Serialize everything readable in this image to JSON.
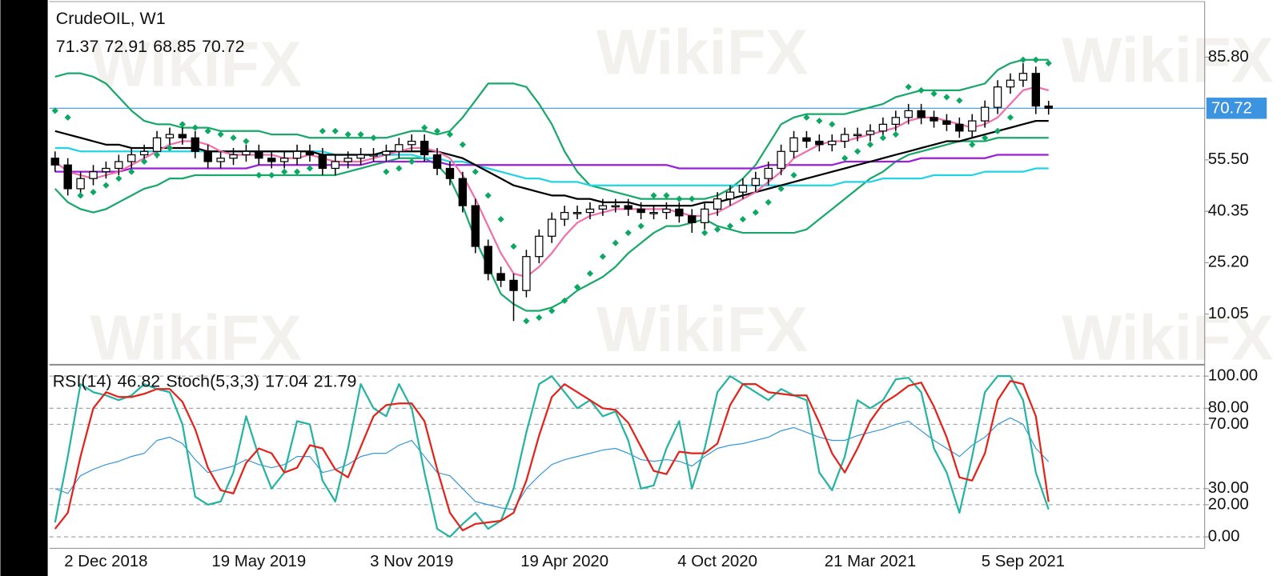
{
  "watermark": "WikiFX",
  "chart_data": [
    {
      "type": "candlestick",
      "title": "CrudeOIL, W1",
      "categories": [
        null,
        null,
        null,
        null,
        "2 Dec 2018",
        null,
        null,
        null,
        null,
        null,
        null,
        null,
        null,
        null,
        null,
        null,
        "19 May 2019",
        null,
        null,
        null,
        null,
        null,
        null,
        null,
        null,
        null,
        null,
        null,
        "3 Nov 2019",
        null,
        null,
        null,
        null,
        null,
        null,
        null,
        null,
        null,
        null,
        null,
        "19 Apr 2020",
        null,
        null,
        null,
        null,
        null,
        null,
        null,
        null,
        null,
        null,
        null,
        "4 Oct 2020",
        null,
        null,
        null,
        null,
        null,
        null,
        null,
        null,
        null,
        null,
        null,
        "21 Mar 2021",
        null,
        null,
        null,
        null,
        null,
        null,
        null,
        null,
        null,
        null,
        null,
        "5 Sep 2021",
        null,
        null
      ],
      "open": [
        56,
        54,
        47,
        50,
        52,
        53,
        55,
        57,
        58,
        62,
        63,
        62,
        58,
        55,
        56,
        57,
        58,
        56,
        55,
        56,
        58,
        57,
        53,
        55,
        56,
        57,
        57,
        58,
        60,
        61,
        57,
        53,
        50,
        42,
        30,
        22,
        20,
        17,
        27,
        33,
        38,
        40,
        40,
        41,
        42,
        42,
        41,
        40,
        40,
        41,
        39,
        37,
        41,
        44,
        46,
        48,
        50,
        53,
        58,
        62,
        61,
        60,
        61,
        63,
        63,
        64,
        66,
        68,
        70,
        68,
        67,
        66,
        64,
        67,
        71,
        77,
        79,
        81,
        71.37
      ],
      "high": [
        58,
        56,
        52,
        54,
        55,
        57,
        59,
        60,
        64,
        65,
        65,
        64,
        60,
        58,
        59,
        60,
        60,
        58,
        58,
        60,
        60,
        59,
        57,
        58,
        59,
        59,
        60,
        62,
        63,
        63,
        59,
        55,
        52,
        44,
        32,
        24,
        22,
        29,
        35,
        40,
        42,
        42,
        43,
        44,
        44,
        44,
        43,
        42,
        43,
        43,
        41,
        43,
        46,
        48,
        50,
        52,
        55,
        60,
        64,
        64,
        63,
        63,
        65,
        65,
        66,
        68,
        70,
        72,
        72,
        70,
        69,
        68,
        69,
        73,
        79,
        81,
        84,
        83,
        72.91
      ],
      "low": [
        52,
        45,
        45,
        48,
        50,
        51,
        53,
        55,
        56,
        60,
        60,
        56,
        53,
        53,
        54,
        55,
        54,
        53,
        53,
        54,
        55,
        51,
        51,
        53,
        54,
        55,
        55,
        56,
        58,
        55,
        51,
        48,
        40,
        28,
        20,
        18,
        8,
        15,
        25,
        31,
        36,
        38,
        38,
        39,
        40,
        39,
        38,
        38,
        38,
        37,
        34,
        35,
        39,
        42,
        44,
        46,
        48,
        51,
        56,
        59,
        58,
        58,
        59,
        61,
        61,
        62,
        64,
        66,
        66,
        65,
        64,
        62,
        62,
        65,
        69,
        75,
        77,
        69,
        68.85
      ],
      "close": [
        54,
        47,
        50,
        52,
        53,
        55,
        57,
        58,
        62,
        63,
        62,
        58,
        55,
        56,
        57,
        58,
        56,
        55,
        56,
        58,
        57,
        53,
        55,
        56,
        57,
        57,
        58,
        60,
        61,
        57,
        53,
        50,
        42,
        30,
        22,
        20,
        17,
        27,
        33,
        38,
        40,
        40,
        41,
        42,
        42,
        41,
        40,
        40,
        41,
        39,
        37,
        41,
        44,
        46,
        48,
        50,
        53,
        58,
        62,
        61,
        60,
        61,
        63,
        63,
        64,
        66,
        68,
        70,
        68,
        67,
        66,
        64,
        67,
        71,
        77,
        79,
        81,
        71.37,
        70.72
      ],
      "up_color": "#ffffff",
      "down_color": "#000000",
      "series": [
        {
          "color": "#1aa86a",
          "values": [
            80,
            81,
            81,
            80,
            78,
            74,
            70,
            67,
            66,
            66,
            65,
            65,
            65,
            64,
            64,
            64,
            64,
            63,
            63,
            63,
            62,
            62,
            62,
            62,
            62,
            62,
            62,
            63,
            64,
            64,
            63,
            64,
            68,
            73,
            78,
            78,
            78,
            77,
            72,
            66,
            58,
            52,
            48,
            47,
            46,
            45,
            44,
            44,
            44,
            44,
            44,
            44,
            45,
            47,
            50,
            54,
            60,
            66,
            68,
            69,
            69,
            69,
            69,
            70,
            71,
            72,
            74,
            75,
            76,
            76,
            76,
            76,
            77,
            78,
            82,
            84,
            85,
            85,
            85
          ]
        },
        {
          "color": "#1aa86a",
          "values": [
            47,
            43,
            41,
            40,
            41,
            43,
            45,
            47,
            48,
            50,
            50,
            51,
            51,
            51,
            51,
            51,
            51,
            51,
            51,
            51,
            51,
            51,
            51,
            52,
            53,
            54,
            55,
            56,
            56,
            56,
            54,
            50,
            42,
            32,
            24,
            16,
            13,
            11,
            11,
            12,
            14,
            17,
            19,
            21,
            24,
            28,
            31,
            34,
            36,
            36,
            37,
            38,
            36,
            35,
            34,
            34,
            34,
            34,
            34,
            35,
            38,
            41,
            44,
            47,
            50,
            52,
            55,
            57,
            58,
            59,
            60,
            61,
            61,
            61,
            62,
            62,
            62,
            62,
            62
          ]
        },
        {
          "color": "#22d3e6",
          "values": [
            59,
            59,
            58,
            58,
            58,
            58,
            58,
            58,
            58,
            58,
            58,
            58,
            58,
            58,
            58,
            58,
            58,
            58,
            58,
            58,
            58,
            58,
            57,
            57,
            57,
            57,
            57,
            57,
            57,
            56,
            56,
            55,
            55,
            54,
            53,
            52,
            51,
            50,
            50,
            49,
            49,
            49,
            48,
            48,
            48,
            48,
            48,
            48,
            48,
            48,
            48,
            48,
            48,
            48,
            48,
            48,
            48,
            48,
            48,
            48,
            48,
            48,
            49,
            49,
            49,
            50,
            50,
            50,
            50,
            51,
            51,
            51,
            51,
            52,
            52,
            52,
            52,
            53,
            53
          ]
        },
        {
          "color": "#9a1ed8",
          "values": [
            52,
            52,
            52,
            52,
            52,
            52,
            53,
            53,
            53,
            53,
            53,
            53,
            53,
            53,
            53,
            53,
            54,
            54,
            54,
            54,
            54,
            54,
            54,
            54,
            54,
            55,
            55,
            55,
            55,
            55,
            55,
            54,
            54,
            54,
            54,
            54,
            54,
            54,
            54,
            54,
            54,
            54,
            54,
            54,
            54,
            54,
            54,
            54,
            54,
            53,
            53,
            53,
            53,
            53,
            53,
            53,
            54,
            54,
            54,
            54,
            54,
            54,
            55,
            55,
            55,
            55,
            55,
            55,
            56,
            56,
            56,
            56,
            56,
            56,
            57,
            57,
            57,
            57,
            57
          ]
        },
        {
          "color": "#000000",
          "values": [
            64,
            63,
            62,
            61,
            60,
            60,
            59,
            59,
            59,
            59,
            59,
            59,
            58,
            58,
            58,
            58,
            58,
            58,
            58,
            58,
            58,
            57,
            57,
            57,
            57,
            57,
            58,
            58,
            58,
            58,
            58,
            57,
            56,
            54,
            52,
            50,
            48,
            47,
            46,
            45,
            45,
            44,
            44,
            43,
            43,
            43,
            42,
            42,
            42,
            42,
            42,
            43,
            43,
            44,
            45,
            46,
            47,
            48,
            49,
            50,
            51,
            52,
            53,
            54,
            55,
            56,
            57,
            58,
            59,
            60,
            61,
            61,
            62,
            63,
            64,
            65,
            66,
            67,
            67
          ]
        },
        {
          "color": "#f06fae",
          "values": [
            55,
            52,
            51,
            50,
            51,
            52,
            54,
            56,
            58,
            60,
            61,
            61,
            60,
            58,
            57,
            57,
            57,
            57,
            56,
            56,
            57,
            56,
            55,
            55,
            55,
            56,
            57,
            58,
            59,
            59,
            58,
            56,
            51,
            44,
            36,
            28,
            22,
            21,
            24,
            28,
            33,
            37,
            39,
            40,
            41,
            41,
            41,
            41,
            41,
            40,
            39,
            39,
            40,
            42,
            44,
            46,
            49,
            52,
            56,
            58,
            60,
            61,
            61,
            62,
            63,
            64,
            65,
            67,
            68,
            68,
            67,
            66,
            65,
            66,
            68,
            72,
            76,
            77,
            76
          ]
        },
        {
          "color": "#0aa860",
          "marker": "dot",
          "values": [
            70,
            68,
            45,
            46,
            48,
            50,
            52,
            55,
            57,
            59,
            66,
            65,
            64,
            63,
            62,
            61,
            51,
            51,
            52,
            52,
            53,
            64,
            64,
            63,
            63,
            62,
            52,
            53,
            55,
            65,
            64,
            63,
            60,
            52,
            45,
            38,
            30,
            8,
            9,
            11,
            14,
            18,
            22,
            27,
            31,
            34,
            36,
            45,
            45,
            44,
            44,
            34,
            35,
            36,
            38,
            40,
            43,
            47,
            51,
            68,
            67,
            66,
            56,
            58,
            60,
            62,
            63,
            77,
            76,
            75,
            74,
            73,
            60,
            62,
            64,
            68,
            85,
            85,
            84
          ]
        }
      ],
      "ylim": [
        -4.87,
        102.63
      ],
      "yticks": [
        10.05,
        {
          "value": 25.2,
          "label": "25.20"
        },
        40.35,
        {
          "value": 55.5,
          "label": "55.50"
        },
        {
          "value": 85.8,
          "label": "85.80"
        }
      ],
      "grid": false,
      "current_price_line": true,
      "current_price_color": "#3c93e0"
    },
    {
      "type": "line",
      "series": [
        {
          "name": "RSI(14)",
          "color": "#3a98d8",
          "values": [
            30,
            27,
            38,
            42,
            45,
            47,
            50,
            52,
            60,
            62,
            58,
            48,
            40,
            42,
            44,
            48,
            45,
            43,
            45,
            50,
            50,
            40,
            42,
            45,
            50,
            52,
            52,
            57,
            60,
            50,
            40,
            38,
            30,
            22,
            20,
            18,
            17,
            30,
            38,
            45,
            48,
            50,
            52,
            54,
            55,
            52,
            48,
            47,
            48,
            47,
            44,
            50,
            55,
            57,
            58,
            60,
            62,
            66,
            68,
            65,
            62,
            60,
            60,
            63,
            65,
            67,
            70,
            72,
            66,
            60,
            55,
            50,
            57,
            62,
            70,
            74,
            70,
            55,
            46.82
          ]
        },
        {
          "name": "Stoch(5,3,3)",
          "color": "#26b3a3",
          "values": [
            9,
            50,
            95,
            90,
            88,
            85,
            88,
            95,
            92,
            90,
            70,
            25,
            20,
            22,
            40,
            75,
            50,
            30,
            40,
            72,
            70,
            35,
            22,
            55,
            95,
            80,
            75,
            95,
            80,
            40,
            5,
            0,
            8,
            15,
            5,
            10,
            30,
            65,
            95,
            100,
            90,
            80,
            85,
            75,
            78,
            60,
            30,
            32,
            55,
            72,
            30,
            55,
            90,
            100,
            95,
            90,
            85,
            92,
            88,
            85,
            40,
            29,
            50,
            85,
            80,
            85,
            98,
            99,
            90,
            55,
            40,
            15,
            50,
            90,
            100,
            100,
            85,
            40,
            17.04
          ]
        },
        {
          "color": "#e3231b",
          "values": [
            5,
            15,
            50,
            80,
            90,
            87,
            87,
            89,
            92,
            92,
            84,
            67,
            43,
            29,
            27,
            46,
            55,
            52,
            40,
            43,
            57,
            55,
            42,
            37,
            56,
            75,
            82,
            83,
            83,
            72,
            42,
            15,
            4,
            8,
            9,
            10,
            15,
            35,
            63,
            87,
            95,
            90,
            85,
            80,
            79,
            71,
            56,
            41,
            39,
            53,
            52,
            52,
            58,
            82,
            95,
            95,
            90,
            89,
            88,
            88,
            71,
            52,
            40,
            55,
            72,
            83,
            88,
            94,
            96,
            81,
            62,
            37,
            35,
            52,
            85,
            97,
            95,
            75,
            21.79
          ]
        }
      ],
      "ylim": [
        -7.1,
        107.1
      ],
      "yticks": [
        {
          "value": 0,
          "label": "0.00"
        },
        {
          "value": 20,
          "label": "20.00"
        },
        {
          "value": 30,
          "label": "30.00"
        },
        {
          "value": 70,
          "label": "70.00"
        },
        {
          "value": 80,
          "label": "80.00"
        },
        {
          "value": 100,
          "label": "100.00"
        }
      ],
      "grid": true
    }
  ]
}
